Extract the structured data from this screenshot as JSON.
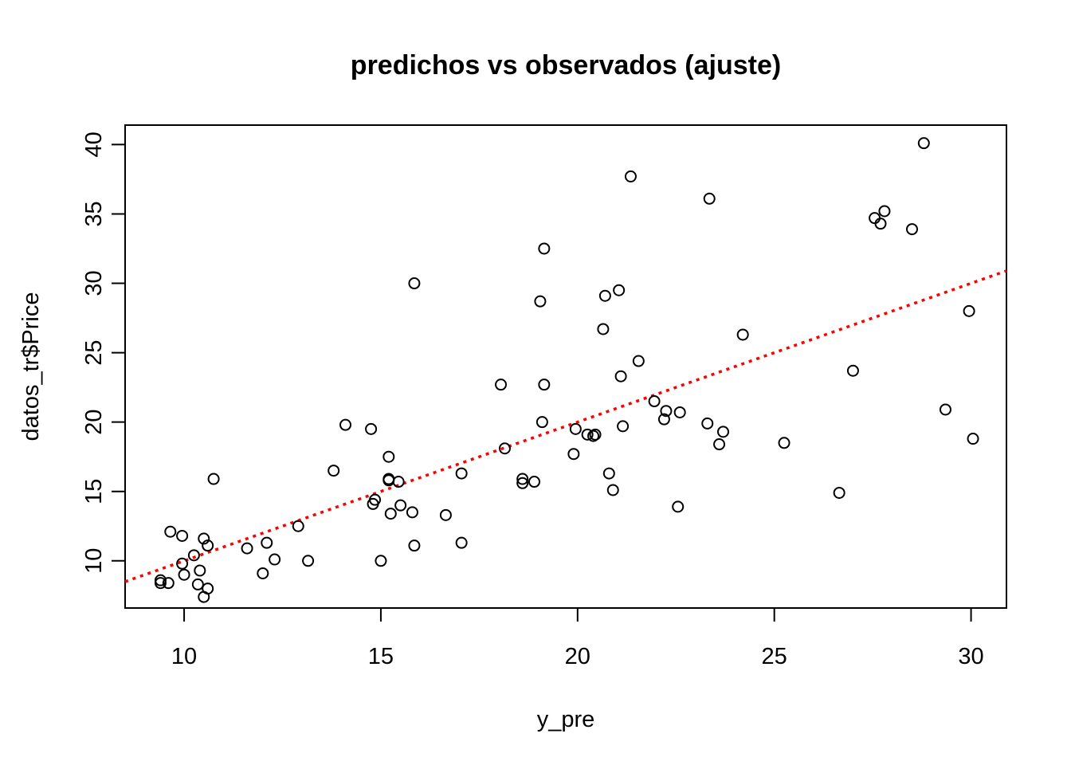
{
  "chart_data": {
    "type": "scatter",
    "title": "predichos vs observados (ajuste)",
    "xlabel": "y_pre",
    "ylabel": "datos_tr$Price",
    "xlim": [
      8.5,
      30.9
    ],
    "ylim": [
      6.6,
      41.4
    ],
    "x_ticks": [
      10,
      15,
      20,
      25,
      30
    ],
    "y_ticks": [
      10,
      15,
      20,
      25,
      30,
      35,
      40
    ],
    "grid": false,
    "legend": "none",
    "point_style": "open-circle",
    "reference_line": {
      "type": "identity",
      "slope": 1,
      "intercept": 0,
      "style": "dotted",
      "color": "#ff0000"
    },
    "points": [
      [
        9.4,
        8.6
      ],
      [
        9.4,
        8.4
      ],
      [
        9.6,
        8.4
      ],
      [
        9.65,
        12.1
      ],
      [
        9.95,
        11.8
      ],
      [
        9.95,
        9.8
      ],
      [
        10.0,
        9.0
      ],
      [
        10.25,
        10.4
      ],
      [
        10.35,
        8.3
      ],
      [
        10.4,
        9.3
      ],
      [
        10.5,
        7.4
      ],
      [
        10.5,
        11.6
      ],
      [
        10.6,
        8.0
      ],
      [
        10.6,
        11.1
      ],
      [
        10.75,
        15.9
      ],
      [
        11.6,
        10.9
      ],
      [
        12.0,
        9.1
      ],
      [
        12.1,
        11.3
      ],
      [
        12.3,
        10.1
      ],
      [
        12.9,
        12.5
      ],
      [
        13.15,
        10.0
      ],
      [
        13.8,
        16.5
      ],
      [
        14.1,
        19.8
      ],
      [
        14.75,
        19.5
      ],
      [
        14.8,
        14.1
      ],
      [
        14.85,
        14.4
      ],
      [
        15.0,
        10.0
      ],
      [
        15.2,
        17.5
      ],
      [
        15.2,
        15.9
      ],
      [
        15.2,
        15.8
      ],
      [
        15.25,
        13.4
      ],
      [
        15.45,
        15.7
      ],
      [
        15.5,
        14.0
      ],
      [
        15.8,
        13.5
      ],
      [
        15.85,
        30.0
      ],
      [
        15.85,
        11.1
      ],
      [
        16.65,
        13.3
      ],
      [
        17.05,
        16.3
      ],
      [
        17.05,
        11.3
      ],
      [
        18.05,
        22.7
      ],
      [
        18.15,
        18.1
      ],
      [
        18.6,
        15.9
      ],
      [
        18.6,
        15.6
      ],
      [
        18.9,
        15.7
      ],
      [
        19.05,
        28.7
      ],
      [
        19.1,
        20.0
      ],
      [
        19.15,
        32.5
      ],
      [
        19.15,
        22.7
      ],
      [
        19.9,
        17.7
      ],
      [
        19.95,
        19.5
      ],
      [
        20.25,
        19.1
      ],
      [
        20.4,
        19.0
      ],
      [
        20.45,
        19.1
      ],
      [
        20.65,
        26.7
      ],
      [
        20.7,
        29.1
      ],
      [
        20.8,
        16.3
      ],
      [
        20.9,
        15.1
      ],
      [
        21.05,
        29.5
      ],
      [
        21.1,
        23.3
      ],
      [
        21.15,
        19.7
      ],
      [
        21.35,
        37.7
      ],
      [
        21.55,
        24.4
      ],
      [
        21.95,
        21.5
      ],
      [
        22.2,
        20.2
      ],
      [
        22.25,
        20.8
      ],
      [
        22.55,
        13.9
      ],
      [
        22.6,
        20.7
      ],
      [
        23.3,
        19.9
      ],
      [
        23.35,
        36.1
      ],
      [
        23.6,
        18.4
      ],
      [
        23.7,
        19.3
      ],
      [
        24.2,
        26.3
      ],
      [
        25.25,
        18.5
      ],
      [
        26.65,
        14.9
      ],
      [
        27.0,
        23.7
      ],
      [
        27.55,
        34.7
      ],
      [
        27.7,
        34.3
      ],
      [
        27.8,
        35.2
      ],
      [
        28.5,
        33.9
      ],
      [
        28.8,
        40.1
      ],
      [
        29.35,
        20.9
      ],
      [
        29.95,
        28.0
      ],
      [
        30.05,
        18.8
      ]
    ]
  }
}
